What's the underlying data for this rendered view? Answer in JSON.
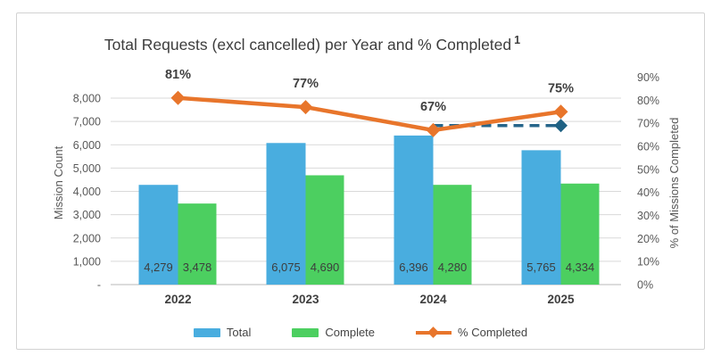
{
  "chart_data": {
    "type": "combo-bar-line",
    "title": "Total Requests (excl cancelled) per Year and % Completed",
    "title_superscript": "1",
    "categories": [
      "2022",
      "2023",
      "2024",
      "2025"
    ],
    "series": [
      {
        "name": "Total",
        "type": "bar",
        "color": "#49ADDF",
        "values": [
          4279,
          6075,
          6396,
          5765
        ],
        "labels": [
          "4,279",
          "6,075",
          "6,396",
          "5,765"
        ]
      },
      {
        "name": "Complete",
        "type": "bar",
        "color": "#4CCF60",
        "values": [
          3478,
          4690,
          4280,
          4334
        ],
        "labels": [
          "3,478",
          "4,690",
          "4,280",
          "4,334"
        ]
      },
      {
        "name": "% Completed",
        "type": "line",
        "axis": "right",
        "color": "#E8752B",
        "values": [
          81,
          77,
          67,
          75
        ],
        "labels": [
          "81%",
          "77%",
          "67%",
          "75%"
        ]
      },
      {
        "name": "unlabeled-dashed-projection",
        "type": "dashed-line",
        "axis": "right",
        "color": "#26658A",
        "marker_color": "#1F6183",
        "values": [
          null,
          null,
          69,
          69
        ],
        "labels": []
      }
    ],
    "left_axis": {
      "title": "Mission Count",
      "min": 0,
      "max": 8000,
      "ticks": [
        "-",
        "1,000",
        "2,000",
        "3,000",
        "4,000",
        "5,000",
        "6,000",
        "7,000",
        "8,000"
      ]
    },
    "right_axis": {
      "title": "% of Missions Completed",
      "min": 0,
      "max": 90,
      "ticks": [
        "0%",
        "10%",
        "20%",
        "30%",
        "40%",
        "50%",
        "60%",
        "70%",
        "80%",
        "90%"
      ]
    },
    "legend": [
      {
        "label": "Total",
        "shape": "rect",
        "color": "#49ADDF"
      },
      {
        "label": "Complete",
        "shape": "rect",
        "color": "#4CCF60"
      },
      {
        "label": "% Completed",
        "shape": "line-diamond",
        "color": "#E8752B"
      }
    ],
    "grid": true,
    "colors": {
      "gridline": "#D9D9D9",
      "baseline": "#C6C6C6",
      "tick_label": "#595959",
      "axis_title": "#595959",
      "category_label": "#3F3F3F",
      "value_label": "#3D3D3D",
      "pct_label": "#404040",
      "title": "#3D3D3D",
      "card_border": "#D2D2D2"
    }
  }
}
